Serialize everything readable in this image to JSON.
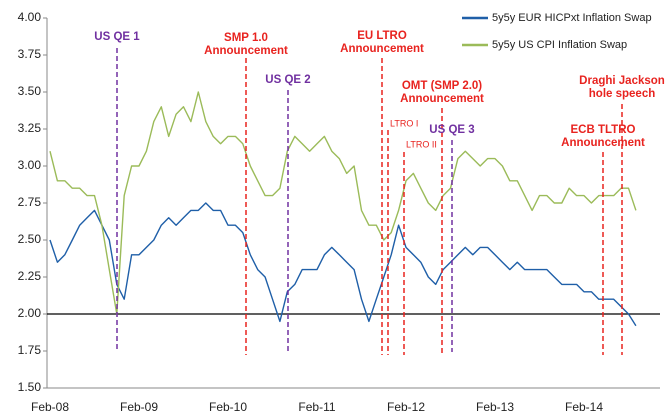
{
  "chart_data": {
    "type": "line",
    "categories": [
      "Feb-08",
      null,
      null,
      null,
      null,
      null,
      null,
      null,
      null,
      null,
      null,
      null,
      "Feb-09",
      null,
      null,
      null,
      null,
      null,
      null,
      null,
      null,
      null,
      null,
      null,
      "Feb-10",
      null,
      null,
      null,
      null,
      null,
      null,
      null,
      null,
      null,
      null,
      null,
      "Feb-11",
      null,
      null,
      null,
      null,
      null,
      null,
      null,
      null,
      null,
      null,
      null,
      "Feb-12",
      null,
      null,
      null,
      null,
      null,
      null,
      null,
      null,
      null,
      null,
      null,
      "Feb-13",
      null,
      null,
      null,
      null,
      null,
      null,
      null,
      null,
      null,
      null,
      null,
      "Feb-14",
      null,
      null,
      null,
      null,
      null,
      null,
      null
    ],
    "series": [
      {
        "name": "5y5y EUR HICPxt Inflation Swap",
        "color": "#1f5fa8",
        "values": [
          2.5,
          2.35,
          2.4,
          2.5,
          2.6,
          2.65,
          2.7,
          2.6,
          2.5,
          2.2,
          2.1,
          2.4,
          2.4,
          2.45,
          2.5,
          2.6,
          2.65,
          2.6,
          2.65,
          2.7,
          2.7,
          2.75,
          2.7,
          2.7,
          2.6,
          2.6,
          2.55,
          2.4,
          2.3,
          2.25,
          2.1,
          1.95,
          2.15,
          2.2,
          2.3,
          2.3,
          2.3,
          2.4,
          2.45,
          2.4,
          2.35,
          2.3,
          2.1,
          1.95,
          2.1,
          2.25,
          2.4,
          2.6,
          2.45,
          2.4,
          2.35,
          2.25,
          2.2,
          2.3,
          2.35,
          2.4,
          2.45,
          2.4,
          2.45,
          2.45,
          2.4,
          2.35,
          2.3,
          2.35,
          2.3,
          2.3,
          2.3,
          2.3,
          2.25,
          2.2,
          2.2,
          2.2,
          2.15,
          2.15,
          2.1,
          2.1,
          2.1,
          2.05,
          2.0,
          1.92
        ]
      },
      {
        "name": "5y5y US CPI Inflation Swap",
        "color": "#9bbb59",
        "values": [
          3.1,
          2.9,
          2.9,
          2.85,
          2.85,
          2.8,
          2.8,
          2.6,
          2.3,
          2.0,
          2.8,
          3.0,
          3.0,
          3.1,
          3.3,
          3.4,
          3.2,
          3.35,
          3.4,
          3.3,
          3.5,
          3.3,
          3.2,
          3.15,
          3.2,
          3.2,
          3.15,
          3.0,
          2.9,
          2.8,
          2.8,
          2.85,
          3.1,
          3.2,
          3.15,
          3.1,
          3.15,
          3.2,
          3.1,
          3.05,
          2.95,
          3.0,
          2.7,
          2.6,
          2.6,
          2.5,
          2.55,
          2.7,
          2.9,
          2.95,
          2.85,
          2.75,
          2.7,
          2.8,
          2.85,
          3.05,
          3.1,
          3.05,
          3.0,
          3.05,
          3.05,
          3.0,
          2.9,
          2.9,
          2.8,
          2.7,
          2.8,
          2.8,
          2.75,
          2.75,
          2.85,
          2.8,
          2.8,
          2.75,
          2.8,
          2.8,
          2.8,
          2.85,
          2.85,
          2.7
        ]
      }
    ],
    "ylim": [
      1.5,
      4.0
    ],
    "yticks": [
      {
        "value": 1.5,
        "label": "1.50"
      },
      {
        "value": 1.75,
        "label": "1.75"
      },
      {
        "value": 2,
        "label": "2.00"
      },
      {
        "value": 2.25,
        "label": "2.25"
      },
      {
        "value": 2.5,
        "label": "2.50"
      },
      {
        "value": 2.75,
        "label": "2.75"
      },
      {
        "value": 3,
        "label": "3.00"
      },
      {
        "value": 3.25,
        "label": "3.25"
      },
      {
        "value": 3.5,
        "label": "3.50"
      },
      {
        "value": 3.75,
        "label": "3.75"
      },
      {
        "value": 4,
        "label": "4.00"
      }
    ],
    "reference_line": 2,
    "legend": "top-right",
    "annotations": [
      {
        "lines": [
          "US QE 1"
        ],
        "color": "#7030a0"
      },
      {
        "lines": [
          "SMP 1.0",
          "Announcement"
        ],
        "color": "#e8231f"
      },
      {
        "lines": [
          "US QE 2"
        ],
        "color": "#7030a0"
      },
      {
        "lines": [
          "EU LTRO",
          "Announcement"
        ],
        "color": "#e8231f"
      },
      {
        "lines": [
          "LTRO I"
        ],
        "color": "#e8231f"
      },
      {
        "lines": [
          "LTRO II"
        ],
        "color": "#e8231f"
      },
      {
        "lines": [
          "OMT (SMP 2.0)",
          "Announcement"
        ],
        "color": "#e8231f"
      },
      {
        "lines": [
          "US QE 3"
        ],
        "color": "#7030a0"
      },
      {
        "lines": [
          "ECB TLTRO",
          "Announcement"
        ],
        "color": "#e8231f"
      },
      {
        "lines": [
          "Draghi Jackson",
          "hole speech"
        ],
        "color": "#e8231f"
      }
    ]
  }
}
